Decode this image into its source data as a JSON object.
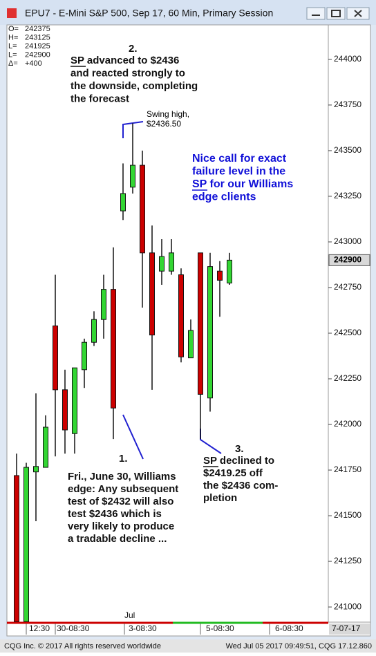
{
  "window_title": "EPU7 - E-Mini S&P 500, Sep 17, 60 Min, Primary Session",
  "data_window": [
    {
      "label": "O=",
      "value": "242375"
    },
    {
      "label": "H=",
      "value": "243125"
    },
    {
      "label": "L=",
      "value": "241925"
    },
    {
      "label": "L=",
      "value": "242900"
    },
    {
      "label": "Δ=",
      "value": "+400"
    }
  ],
  "chart_data": {
    "type": "candlestick",
    "up_color": "#33d633",
    "down_color": "#cc0000",
    "open": [
      241720,
      240920,
      241740,
      241765,
      242540,
      242190,
      241950,
      242300,
      242450,
      242575,
      242740,
      243170,
      243300,
      243420,
      242940,
      242840,
      242840,
      242820,
      242365,
      242940,
      242145,
      242840,
      242775
    ],
    "high": [
      241840,
      241790,
      242170,
      242050,
      242820,
      242300,
      242310,
      242470,
      242620,
      242820,
      242970,
      243430,
      243650,
      243500,
      243090,
      243015,
      243015,
      242855,
      242575,
      242940,
      242940,
      242895,
      242940
    ],
    "low": [
      240920,
      240920,
      241470,
      241765,
      241825,
      241840,
      241840,
      242200,
      242430,
      242470,
      241920,
      243120,
      243265,
      242640,
      242190,
      242765,
      242820,
      242340,
      242365,
      241920,
      242070,
      242590,
      242765
    ],
    "close": [
      240920,
      241765,
      241770,
      241985,
      242190,
      241970,
      242310,
      242450,
      242575,
      242740,
      242090,
      243265,
      243420,
      242940,
      242490,
      242920,
      242940,
      242370,
      242515,
      242165,
      242865,
      242790,
      242900
    ],
    "ylim": [
      240917,
      244189
    ],
    "yticks": [
      241000,
      241250,
      241500,
      241750,
      242000,
      242250,
      242500,
      242750,
      243000,
      243250,
      243500,
      243750,
      244000
    ],
    "time_labels": [
      "12:30",
      "30-08:30",
      "Jul",
      "3-08:30",
      "5-08:30",
      "6-08:30",
      "7-07-17"
    ]
  },
  "annotations": {
    "forecast_number": "2.",
    "forecast": [
      "SP advanced to $2436",
      "and reacted strongly to",
      "the downside, completing",
      "the forecast"
    ],
    "swing_high": [
      "Swing high,",
      "$2436.50"
    ],
    "nice_call": [
      "Nice call for exact",
      "failure level in the",
      "SP for our Williams",
      "edge clients"
    ],
    "edge_number": "1.",
    "edge": [
      "Fri., June 30, Williams",
      "edge: Any subsequent",
      "test of $2432 will also",
      "test $2436 which is",
      "very likely to produce",
      "a tradable decline ..."
    ],
    "decline_number": "3.",
    "decline": [
      "SP declined to",
      "$2419.25 off",
      "the $2436 com-",
      "pletion"
    ]
  },
  "footer": {
    "left": "CQG Inc. © 2017 All rights reserved worldwide",
    "right": "Wed Jul 05 2017 09:49:51, CQG 17.12.860"
  }
}
